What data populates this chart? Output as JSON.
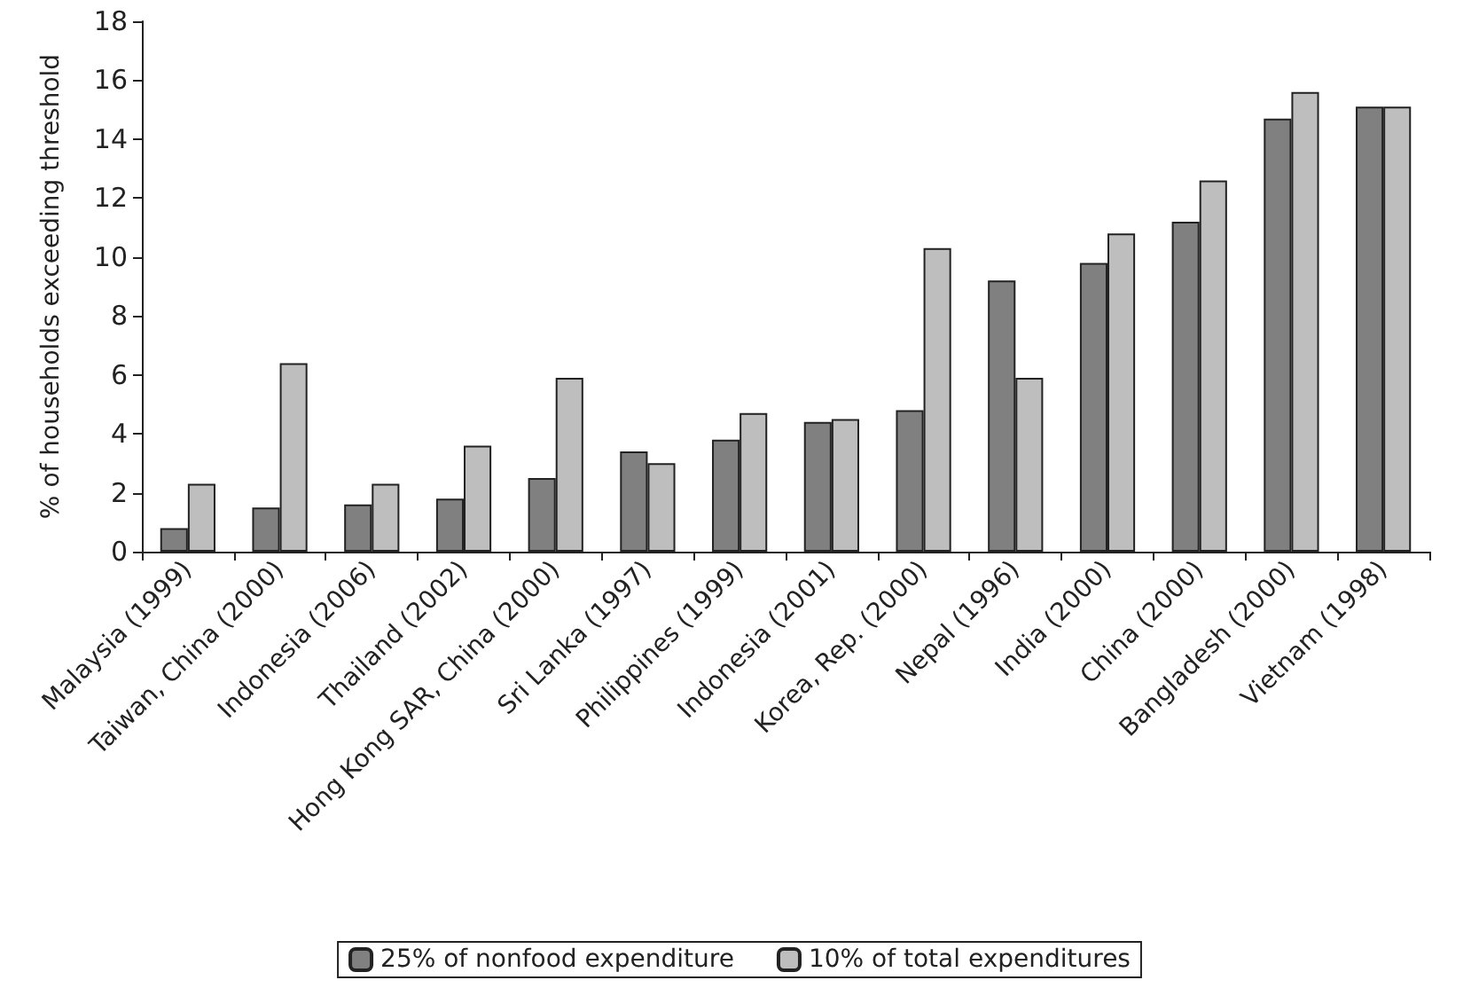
{
  "chart_data": {
    "type": "bar",
    "ylabel": "% of households exceeding threshold",
    "categories": [
      "Malaysia (1999)",
      "Taiwan, China (2000)",
      "Indonesia (2006)",
      "Thailand (2002)",
      "Hong Kong SAR, China (2000)",
      "Sri Lanka (1997)",
      "Philippines (1999)",
      "Indonesia (2001)",
      "Korea, Rep. (2000)",
      "Nepal (1996)",
      "India (2000)",
      "China (2000)",
      "Bangladesh (2000)",
      "Vietnam (1998)"
    ],
    "series": [
      {
        "name": "25% of nonfood expenditure",
        "color": "#808080",
        "values": [
          0.8,
          1.5,
          1.6,
          1.8,
          2.5,
          3.4,
          3.8,
          4.4,
          4.8,
          9.2,
          9.8,
          11.2,
          14.7,
          15.1
        ]
      },
      {
        "name": "10% of total expenditures",
        "color": "#bebebe",
        "values": [
          2.3,
          6.4,
          2.3,
          3.6,
          5.9,
          3.0,
          4.7,
          4.5,
          10.3,
          5.9,
          10.8,
          12.6,
          15.6,
          15.1
        ]
      }
    ],
    "ylim": [
      0,
      18
    ],
    "yticks": [
      0,
      2,
      4,
      6,
      8,
      10,
      12,
      14,
      16,
      18
    ],
    "grid": false,
    "legend": "bottom"
  }
}
